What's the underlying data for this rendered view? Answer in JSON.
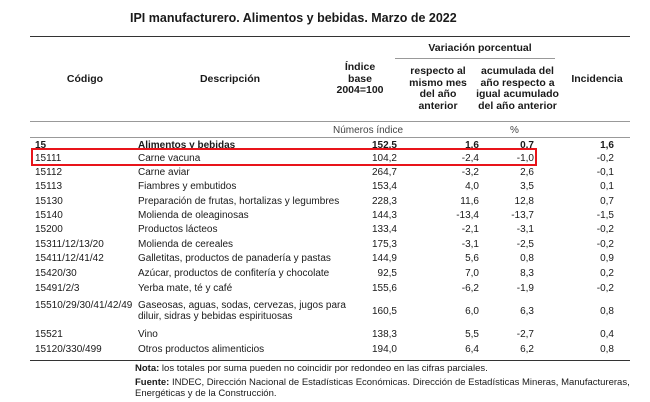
{
  "title": "IPI manufacturero. Alimentos y bebidas. Marzo de 2022",
  "headers": {
    "codigo": "Código",
    "descripcion": "Descripción",
    "indice_l1": "Índice",
    "indice_l2": "base",
    "indice_l3": "2004=100",
    "variacion": "Variación porcentual",
    "respecto_l1": "respecto al",
    "respecto_l2": "mismo mes",
    "respecto_l3": "del año",
    "respecto_l4": "anterior",
    "acumulada_l1": "acumulada del",
    "acumulada_l2": "año respecto a",
    "acumulada_l3": "igual acumulado",
    "acumulada_l4": "del año anterior",
    "incidencia": "Incidencia"
  },
  "units": {
    "indice": "Números índice",
    "variacion": "%"
  },
  "rows": [
    {
      "code": "15",
      "desc1": "Alimentos y bebidas",
      "desc2": "",
      "index": "152,5",
      "var_month": "1,6",
      "var_cum": "0,7",
      "incidence": "1,6"
    },
    {
      "code": "15111",
      "desc1": "Carne vacuna",
      "desc2": "",
      "index": "104,2",
      "var_month": "-2,4",
      "var_cum": "-1,0",
      "incidence": "-0,2"
    },
    {
      "code": "15112",
      "desc1": "Carne aviar",
      "desc2": "",
      "index": "264,7",
      "var_month": "-3,2",
      "var_cum": "2,6",
      "incidence": "-0,1"
    },
    {
      "code": "15113",
      "desc1": "Fiambres y embutidos",
      "desc2": "",
      "index": "153,4",
      "var_month": "4,0",
      "var_cum": "3,5",
      "incidence": "0,1"
    },
    {
      "code": "15130",
      "desc1": "Preparación de frutas, hortalizas y legumbres",
      "desc2": "",
      "index": "228,3",
      "var_month": "11,6",
      "var_cum": "12,8",
      "incidence": "0,7"
    },
    {
      "code": "15140",
      "desc1": "Molienda de oleaginosas",
      "desc2": "",
      "index": "144,3",
      "var_month": "-13,4",
      "var_cum": "-13,7",
      "incidence": "-1,5"
    },
    {
      "code": "15200",
      "desc1": "Productos lácteos",
      "desc2": "",
      "index": "133,4",
      "var_month": "-2,1",
      "var_cum": "-3,1",
      "incidence": "-0,2"
    },
    {
      "code": "15311/12/13/20",
      "desc1": "Molienda de cereales",
      "desc2": "",
      "index": "175,3",
      "var_month": "-3,1",
      "var_cum": "-2,5",
      "incidence": "-0,2"
    },
    {
      "code": "15411/12/41/42",
      "desc1": "Galletitas, productos de panadería y pastas",
      "desc2": "",
      "index": "144,9",
      "var_month": "5,6",
      "var_cum": "0,8",
      "incidence": "0,9"
    },
    {
      "code": "15420/30",
      "desc1": "Azúcar, productos de confitería y chocolate",
      "desc2": "",
      "index": "92,5",
      "var_month": "7,0",
      "var_cum": "8,3",
      "incidence": "0,2"
    },
    {
      "code": "15491/2/3",
      "desc1": "Yerba mate, té y café",
      "desc2": "",
      "index": "155,6",
      "var_month": "-6,2",
      "var_cum": "-1,9",
      "incidence": "-0,2"
    },
    {
      "code": "15510/29/30/41/42/49",
      "desc1": "Gaseosas, aguas, sodas, cervezas, jugos para",
      "desc2": "diluir, sidras y bebidas espirituosas",
      "index": "160,5",
      "var_month": "6,0",
      "var_cum": "6,3",
      "incidence": "0,8"
    },
    {
      "code": "15521",
      "desc1": "Vino",
      "desc2": "",
      "index": "138,3",
      "var_month": "5,5",
      "var_cum": "-2,7",
      "incidence": "0,4"
    },
    {
      "code": "15120/330/499",
      "desc1": "Otros productos alimenticios",
      "desc2": "",
      "index": "194,0",
      "var_month": "6,4",
      "var_cum": "6,2",
      "incidence": "0,8"
    }
  ],
  "notes": {
    "nota_label": "Nota:",
    "nota_text": " los totales por suma pueden no coincidir por redondeo en las cifras parciales.",
    "fuente_label": "Fuente:",
    "fuente_text": " INDEC, Dirección Nacional de Estadísticas Económicas. Dirección de Estadísticas Mineras, Manufactureras, Energéticas y de la Construcción."
  },
  "colors": {
    "highlight": "#e8141a"
  }
}
